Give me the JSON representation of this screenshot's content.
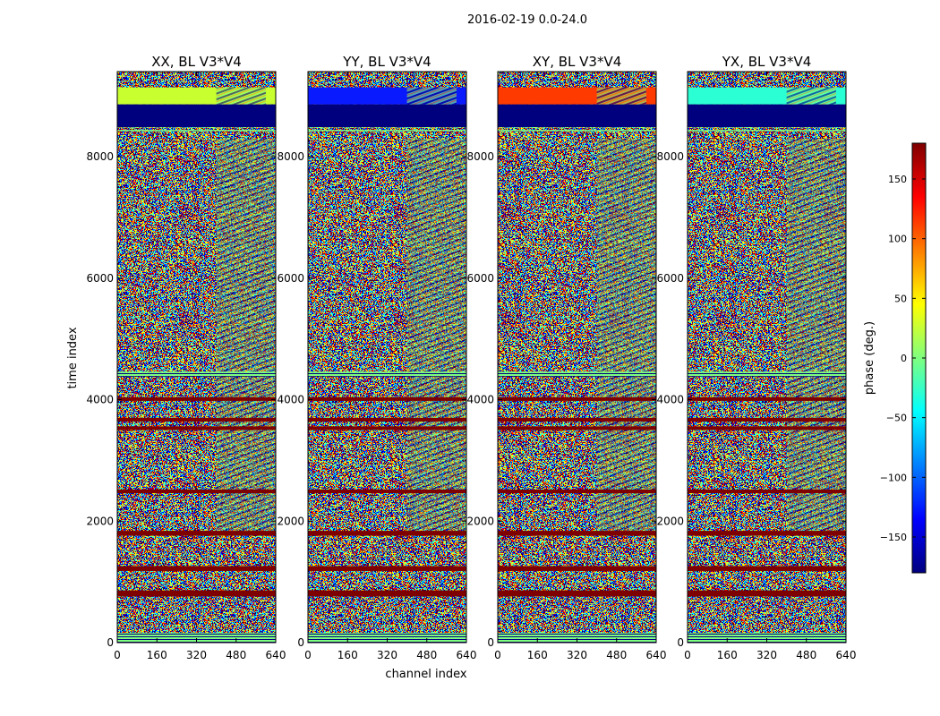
{
  "figure": {
    "suptitle": "2016-02-19 0.0-24.0"
  },
  "chart_data": [
    {
      "type": "heatmap",
      "title": "XX, BL V3*V4",
      "xlabel": "channel index",
      "ylabel": "time index",
      "xlim": [
        0,
        640
      ],
      "ylim": [
        0,
        9400
      ],
      "xticks": [
        0,
        160,
        320,
        480,
        640
      ],
      "yticks": [
        0,
        2000,
        4000,
        6000,
        8000
      ],
      "value": "phase (deg.)"
    },
    {
      "type": "heatmap",
      "title": "YY, BL V3*V4",
      "xlabel": "channel index",
      "ylabel": "time index",
      "xlim": [
        0,
        640
      ],
      "ylim": [
        0,
        9400
      ],
      "xticks": [
        0,
        160,
        320,
        480,
        640
      ],
      "yticks": [
        0,
        2000,
        4000,
        6000,
        8000
      ],
      "value": "phase (deg.)"
    },
    {
      "type": "heatmap",
      "title": "XY, BL V3*V4",
      "xlabel": "channel index",
      "ylabel": "time index",
      "xlim": [
        0,
        640
      ],
      "ylim": [
        0,
        9400
      ],
      "xticks": [
        0,
        160,
        320,
        480,
        640
      ],
      "yticks": [
        0,
        2000,
        4000,
        6000,
        8000
      ],
      "value": "phase (deg.)"
    },
    {
      "type": "heatmap",
      "title": "YX, BL V3*V4",
      "xlabel": "channel index",
      "ylabel": "time index",
      "xlim": [
        0,
        640
      ],
      "ylim": [
        0,
        9400
      ],
      "xticks": [
        0,
        160,
        320,
        480,
        640
      ],
      "yticks": [
        0,
        2000,
        4000,
        6000,
        8000
      ],
      "value": "phase (deg.)"
    }
  ],
  "shared_axes": {
    "xlabel": "channel index",
    "ylabel": "time index"
  },
  "colorbar": {
    "label": "phase (deg.)",
    "range": [
      -180,
      180
    ],
    "ticks": [
      -150,
      -100,
      -50,
      0,
      50,
      100,
      150
    ],
    "colormap": "jet",
    "colors": [
      "#00007f",
      "#0000ff",
      "#007fff",
      "#00ffff",
      "#7fff7f",
      "#ffff00",
      "#ff7f00",
      "#ff0000",
      "#7f0000"
    ]
  }
}
